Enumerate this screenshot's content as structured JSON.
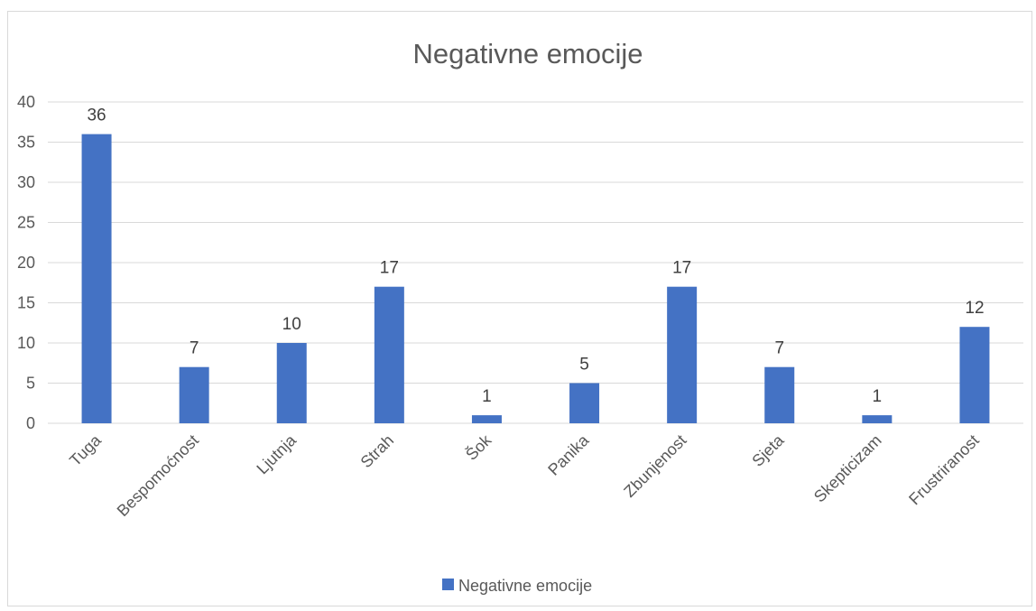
{
  "chart_data": {
    "type": "bar",
    "title": "Negativne emocije",
    "xlabel": "",
    "ylabel": "",
    "categories": [
      "Tuga",
      "Bespomoćnost",
      "Ljutnja",
      "Strah",
      "Šok",
      "Panika",
      "Zbunjenost",
      "Sjeta",
      "Skepticizam",
      "Frustriranost"
    ],
    "series": [
      {
        "name": "Negativne emocije",
        "values": [
          36,
          7,
          10,
          17,
          1,
          5,
          17,
          7,
          1,
          12
        ],
        "color": "#4472c4"
      }
    ],
    "ylim": [
      0,
      40
    ],
    "yticks": [
      0,
      5,
      10,
      15,
      20,
      25,
      30,
      35,
      40
    ],
    "grid": true,
    "data_labels": true,
    "legend_position": "bottom"
  }
}
